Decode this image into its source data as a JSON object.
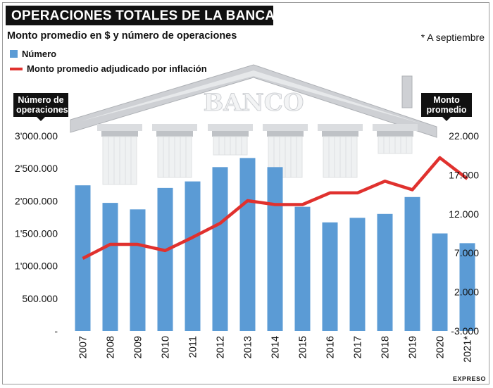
{
  "header": {
    "title": "OPERACIONES TOTALES DE LA BANCA PRIVADA",
    "subtitle": "Monto promedio en $ y número de operaciones",
    "note": "* A septiembre",
    "credit": "EXPRESO"
  },
  "decoration": {
    "building_text": "BANCO"
  },
  "colors": {
    "bars": "#5b9bd5",
    "line": "#e0312e"
  },
  "chart_data": {
    "type": "bar",
    "categories": [
      "2007",
      "2008",
      "2009",
      "2010",
      "2011",
      "2012",
      "2013",
      "2014",
      "2015",
      "2016",
      "2017",
      "2018",
      "2019",
      "2020",
      "2021*"
    ],
    "series": [
      {
        "name": "Número",
        "type": "bar",
        "axis": "left",
        "values": [
          2240000,
          1970000,
          1870000,
          2200000,
          2300000,
          2520000,
          2660000,
          2520000,
          1910000,
          1670000,
          1740000,
          1800000,
          2060000,
          1500000,
          1350000
        ]
      },
      {
        "name": "Monto promedio adjudicado por inflación",
        "type": "line",
        "axis": "right",
        "values": [
          6300,
          8100,
          8100,
          7300,
          9000,
          10800,
          13700,
          13200,
          13200,
          14700,
          14700,
          16200,
          15100,
          19200,
          16500
        ]
      }
    ],
    "y_left": {
      "label": "Número de operaciones",
      "ylim": [
        0,
        3000000
      ],
      "ticks": [
        0,
        500000,
        1000000,
        1500000,
        2000000,
        2500000,
        3000000
      ],
      "tick_labels": [
        "-",
        "500.000",
        "1'000.000",
        "1'500.000",
        "2'000.000",
        "2'500.000",
        "3'000.000"
      ]
    },
    "y_right": {
      "label": "Monto promedio",
      "ylim": [
        -3000,
        22000
      ],
      "ticks": [
        -3000,
        2000,
        7000,
        12000,
        17000,
        22000
      ],
      "tick_labels": [
        "-3.000",
        "2.000",
        "7.000",
        "12.000",
        "17.000",
        "22.000"
      ]
    },
    "grid": false,
    "legend_position": "top-left"
  }
}
